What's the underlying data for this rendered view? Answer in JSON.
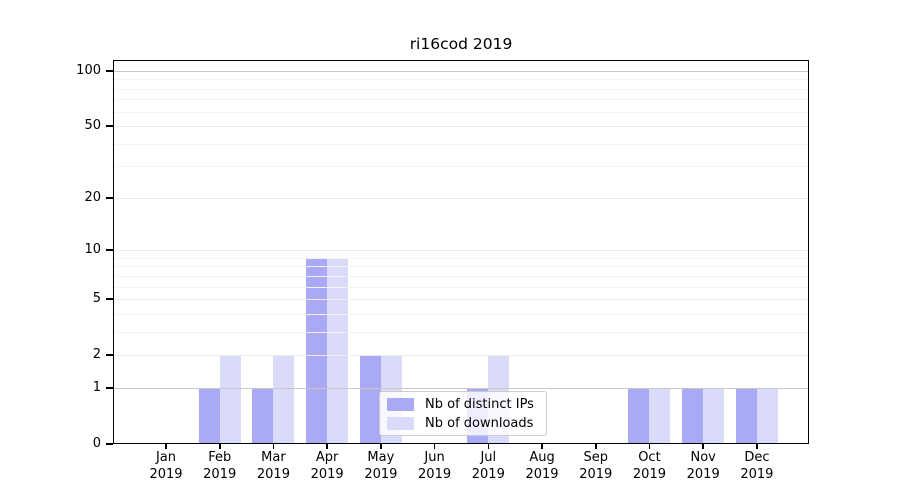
{
  "title": "ri16cod 2019",
  "legend": {
    "items": [
      {
        "label": "Nb of distinct IPs",
        "color": "#a9a9f6"
      },
      {
        "label": "Nb of downloads",
        "color": "#dadaf9"
      }
    ]
  },
  "chart_data": {
    "type": "bar",
    "title": "ri16cod 2019",
    "categories": [
      "Jan 2019",
      "Feb 2019",
      "Mar 2019",
      "Apr 2019",
      "May 2019",
      "Jun 2019",
      "Jul 2019",
      "Aug 2019",
      "Sep 2019",
      "Oct 2019",
      "Nov 2019",
      "Dec 2019"
    ],
    "series": [
      {
        "name": "Nb of distinct IPs",
        "color": "#a9a9f6",
        "values": [
          0,
          1,
          1,
          9,
          2,
          0,
          1,
          0,
          0,
          1,
          1,
          1
        ]
      },
      {
        "name": "Nb of downloads",
        "color": "#dadaf9",
        "values": [
          0,
          2,
          2,
          9,
          2,
          0,
          2,
          0,
          0,
          1,
          1,
          1
        ]
      }
    ],
    "xlabel": "",
    "ylabel": "",
    "yscale": "log(1+y)",
    "yticks": [
      0,
      1,
      2,
      5,
      10,
      20,
      50,
      100
    ],
    "ylim": [
      0,
      105
    ],
    "grid": "horizontal",
    "legend_position": "inside lower-center"
  },
  "axis_style": {
    "grid_strong_values": [
      1,
      100
    ],
    "grid_mid_values": [
      2,
      5,
      10,
      20,
      50
    ],
    "grid_minor_values": [
      3,
      4,
      6,
      7,
      8,
      9,
      30,
      40,
      60,
      70,
      80,
      90
    ],
    "grid_strong_color": "#c8c8c8",
    "grid_mid_color": "#ebebeb",
    "grid_minor_color": "#f4f4f4",
    "spine_color": "#000000",
    "text_color": "#000000"
  }
}
